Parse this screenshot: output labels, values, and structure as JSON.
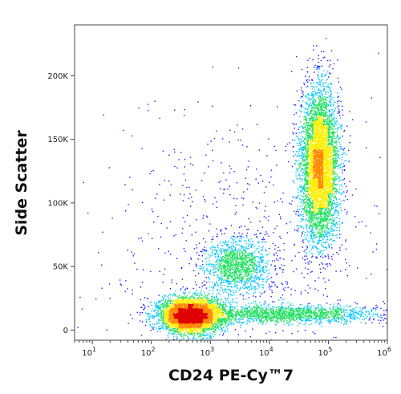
{
  "chart_data": {
    "type": "scatter",
    "subtype": "flow-cytometry-density-dot-plot",
    "title": "",
    "xlabel": "CD24 PE-Cy™7",
    "ylabel": "Side Scatter",
    "x_scale": "log",
    "x_lim": [
      5,
      1000000
    ],
    "y_lim": [
      -8000,
      240000
    ],
    "x_ticks": [
      {
        "value": 10,
        "base": "10",
        "exp": "1"
      },
      {
        "value": 100,
        "base": "10",
        "exp": "2"
      },
      {
        "value": 1000,
        "base": "10",
        "exp": "3"
      },
      {
        "value": 10000,
        "base": "10",
        "exp": "4"
      },
      {
        "value": 100000,
        "base": "10",
        "exp": "5"
      },
      {
        "value": 1000000,
        "base": "10",
        "exp": "6"
      }
    ],
    "y_ticks": [
      {
        "value": 0,
        "label": "0"
      },
      {
        "value": 50000,
        "label": "50K"
      },
      {
        "value": 100000,
        "label": "100K"
      },
      {
        "value": 150000,
        "label": "150K"
      },
      {
        "value": 200000,
        "label": "200K"
      }
    ],
    "grid": false,
    "legend": "none",
    "color_scale": [
      "#1a1aff",
      "#00c8ff",
      "#20e060",
      "#ffee00",
      "#ff8800",
      "#e00000"
    ],
    "populations": [
      {
        "x_center": 70000,
        "x_spread_decades": 0.16,
        "y_center": 130000,
        "y_spread": 30000,
        "count": 5200
      },
      {
        "x_center": 450,
        "x_spread_decades": 0.28,
        "y_center": 12000,
        "y_spread": 7000,
        "count": 4200
      },
      {
        "x_center": 2800,
        "x_spread_decades": 0.28,
        "y_center": 50000,
        "y_spread": 11000,
        "count": 1300
      },
      {
        "x_center": 20000,
        "x_spread_decades": 0.8,
        "y_center": 13000,
        "y_spread": 3500,
        "count": 1600
      },
      {
        "x_center": 3000,
        "x_spread_decades": 1.3,
        "y_center": 60000,
        "y_spread": 55000,
        "count": 700
      }
    ]
  }
}
